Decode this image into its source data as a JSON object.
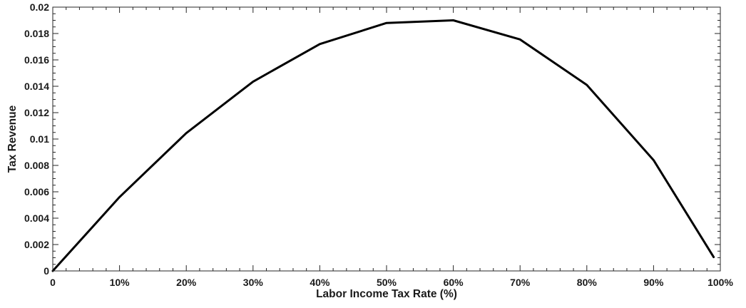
{
  "chart_data": {
    "type": "line",
    "title": "",
    "xlabel": "Labor Income Tax Rate (%)",
    "ylabel": "Tax Revenue",
    "xlim": [
      0,
      100
    ],
    "ylim": [
      0,
      0.02
    ],
    "grid": false,
    "legend": "none",
    "line_color": "#000000",
    "x_ticks": [
      {
        "value": 0,
        "label": "0"
      },
      {
        "value": 10,
        "label": "10%"
      },
      {
        "value": 20,
        "label": "20%"
      },
      {
        "value": 30,
        "label": "30%"
      },
      {
        "value": 40,
        "label": "40%"
      },
      {
        "value": 50,
        "label": "50%"
      },
      {
        "value": 60,
        "label": "60%"
      },
      {
        "value": 70,
        "label": "70%"
      },
      {
        "value": 80,
        "label": "80%"
      },
      {
        "value": 90,
        "label": "90%"
      },
      {
        "value": 100,
        "label": "100%"
      }
    ],
    "y_ticks": [
      {
        "value": 0,
        "label": "0"
      },
      {
        "value": 0.002,
        "label": "0.002"
      },
      {
        "value": 0.004,
        "label": "0.004"
      },
      {
        "value": 0.006,
        "label": "0.006"
      },
      {
        "value": 0.008,
        "label": "0.008"
      },
      {
        "value": 0.01,
        "label": "0.01"
      },
      {
        "value": 0.012,
        "label": "0.012"
      },
      {
        "value": 0.014,
        "label": "0.014"
      },
      {
        "value": 0.016,
        "label": "0.016"
      },
      {
        "value": 0.018,
        "label": "0.018"
      },
      {
        "value": 0.02,
        "label": "0.02"
      }
    ],
    "series": [
      {
        "x": [
          0,
          10,
          20,
          30,
          40,
          50,
          60,
          70,
          80,
          90,
          99
        ],
        "y": [
          0,
          0.0056,
          0.01045,
          0.01435,
          0.0172,
          0.0188,
          0.019,
          0.01755,
          0.0141,
          0.0084,
          0.00105
        ]
      }
    ]
  }
}
